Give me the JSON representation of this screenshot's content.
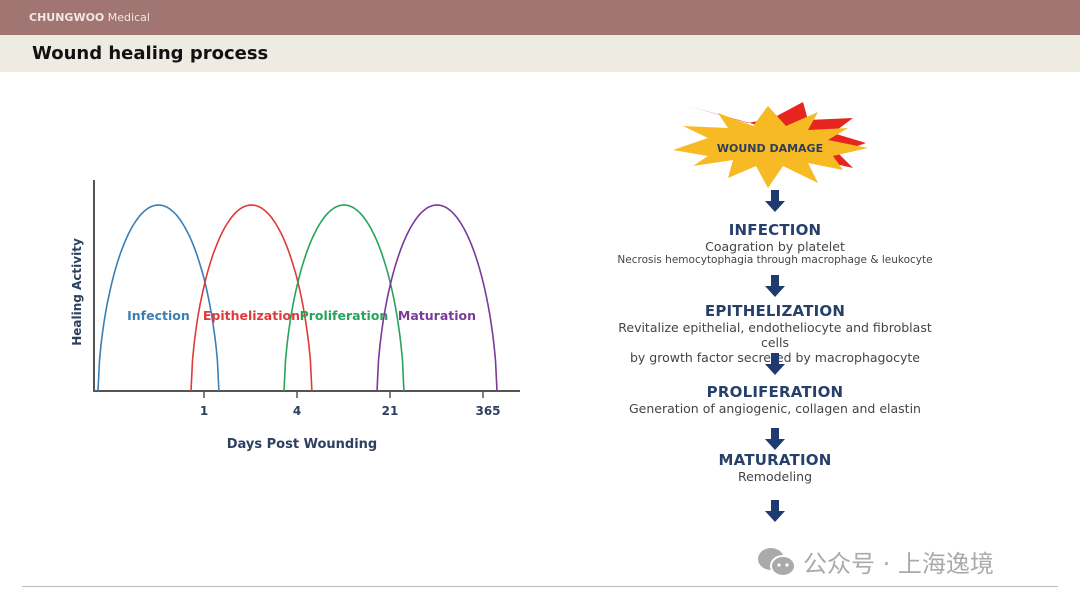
{
  "header": {
    "brand_bold": "CHUNGWOO",
    "brand_light": "Medical",
    "title": "Wound healing process"
  },
  "chart_data": {
    "type": "line",
    "xlabel": "Days Post Wounding",
    "ylabel": "Healing Activity",
    "x_ticks": [
      "1",
      "4",
      "21",
      "365"
    ],
    "grid": false,
    "series": [
      {
        "name": "Infection",
        "color": "#3a7fb5",
        "start": -0.14,
        "end": 1.16,
        "peak": 1
      },
      {
        "name": "Epithelization",
        "color": "#e0393a",
        "start": 0.86,
        "end": 2.16,
        "peak": 1
      },
      {
        "name": "Proliferation",
        "color": "#2aa35a",
        "start": 1.86,
        "end": 3.15,
        "peak": 1
      },
      {
        "name": "Maturation",
        "color": "#7a3a9a",
        "start": 2.86,
        "end": 4.15,
        "peak": 1
      }
    ]
  },
  "flow": {
    "start": "WOUND DAMAGE",
    "steps": [
      {
        "title": "INFECTION",
        "lines": [
          "Coagration by platelet",
          "Necrosis hemocytophagia through macrophage & leukocyte"
        ]
      },
      {
        "title": "EPITHELIZATION",
        "lines": [
          "Revitalize epithelial, endotheliocyte and fibroblast cells",
          "by growth factor secreted by macrophagocyte"
        ]
      },
      {
        "title": "PROLIFERATION",
        "lines": [
          "Generation of angiogenic, collagen and elastin"
        ]
      },
      {
        "title": "MATURATION",
        "lines": [
          "Remodeling"
        ]
      }
    ],
    "arrow_color": "#1f3a6e"
  },
  "watermark": {
    "text": "公众号 · 上海逸境",
    "icon": "wechat-icon"
  }
}
